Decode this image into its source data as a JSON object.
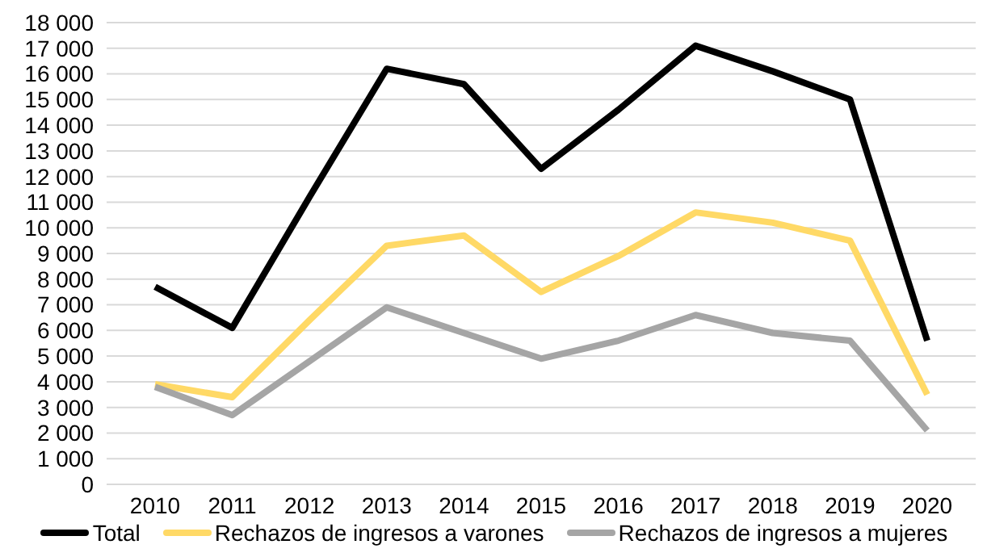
{
  "chart_data": {
    "type": "line",
    "categories": [
      "2010",
      "2011",
      "2012",
      "2013",
      "2014",
      "2015",
      "2016",
      "2017",
      "2018",
      "2019",
      "2020"
    ],
    "series": [
      {
        "name": "Total",
        "color": "#000000",
        "values": [
          7700,
          6100,
          11200,
          16200,
          15600,
          12300,
          14600,
          17100,
          16100,
          15000,
          5600
        ]
      },
      {
        "name": "Rechazos de ingresos a varones",
        "color": "#ffd966",
        "values": [
          3900,
          3400,
          6400,
          9300,
          9700,
          7500,
          8900,
          10600,
          10200,
          9500,
          3500
        ]
      },
      {
        "name": "Rechazos de ingresos a mujeres",
        "color": "#a5a5a5",
        "values": [
          3800,
          2700,
          4800,
          6900,
          5900,
          4900,
          5600,
          6600,
          5900,
          5600,
          2100
        ]
      }
    ],
    "ylim": [
      0,
      18000
    ],
    "yticks": [
      {
        "value": 0,
        "label": "0"
      },
      {
        "value": 1000,
        "label": "1 000"
      },
      {
        "value": 2000,
        "label": "2 000"
      },
      {
        "value": 3000,
        "label": "3 000"
      },
      {
        "value": 4000,
        "label": "4 000"
      },
      {
        "value": 5000,
        "label": "5 000"
      },
      {
        "value": 6000,
        "label": "6 000"
      },
      {
        "value": 7000,
        "label": "7 000"
      },
      {
        "value": 8000,
        "label": "8 000"
      },
      {
        "value": 9000,
        "label": "9 000"
      },
      {
        "value": 10000,
        "label": "10 000"
      },
      {
        "value": 11000,
        "label": "11 000"
      },
      {
        "value": 12000,
        "label": "12 000"
      },
      {
        "value": 13000,
        "label": "13 000"
      },
      {
        "value": 14000,
        "label": "14 000"
      },
      {
        "value": 15000,
        "label": "15 000"
      },
      {
        "value": 16000,
        "label": "16 000"
      },
      {
        "value": 17000,
        "label": "17 000"
      },
      {
        "value": 18000,
        "label": "18 000"
      }
    ],
    "grid": "y",
    "legend": "bottom",
    "marker": "none",
    "line_style": "solid"
  }
}
